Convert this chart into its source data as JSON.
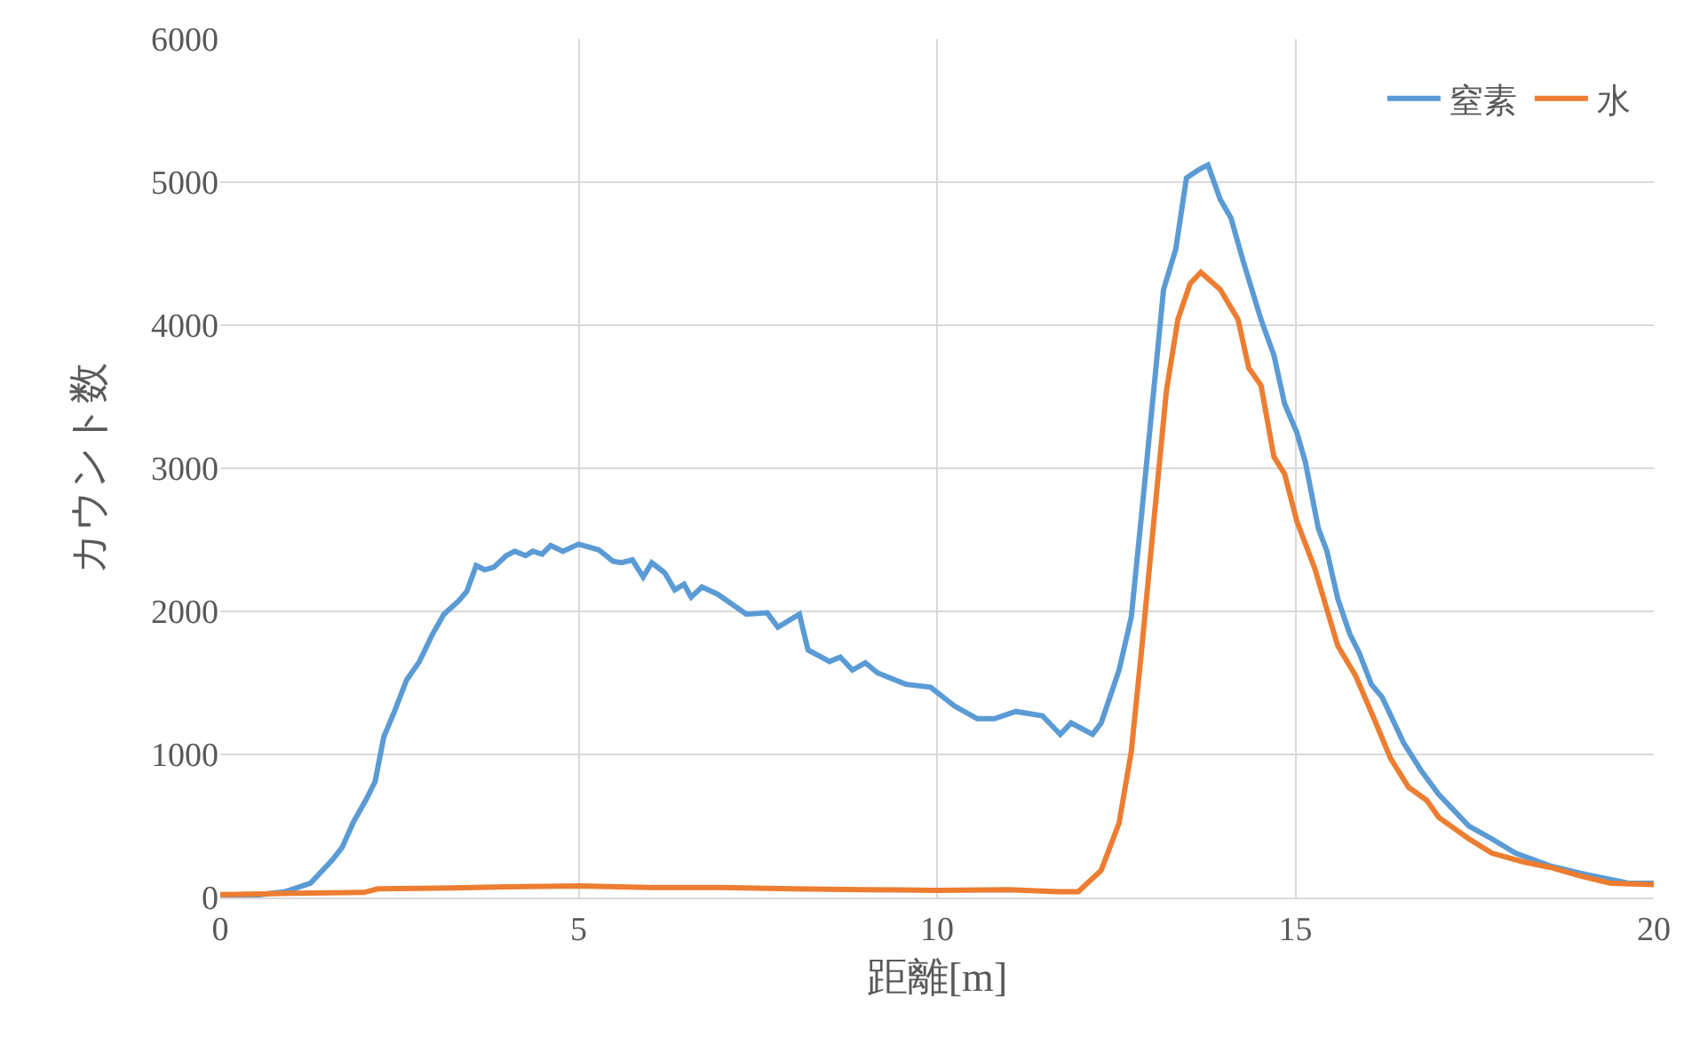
{
  "chart_data": {
    "type": "line",
    "xlabel": "距離[m]",
    "ylabel": "カウント数",
    "xlim": [
      0,
      20
    ],
    "xticks": [
      0,
      5,
      10,
      15,
      20
    ],
    "ylim": [
      0,
      6000
    ],
    "yticks": [
      0,
      1000,
      2000,
      3000,
      4000,
      5000,
      6000
    ],
    "grid": true,
    "legend": "top right",
    "marker": "none",
    "line_style": "solid",
    "series": [
      {
        "name": "窒素",
        "color": "#5b9bd5",
        "x": [
          0,
          0.4,
          0.9,
          1.26,
          1.56,
          1.7,
          1.86,
          2.03,
          2.16,
          2.28,
          2.43,
          2.6,
          2.78,
          2.95,
          3.12,
          3.32,
          3.44,
          3.57,
          3.69,
          3.82,
          3.99,
          4.11,
          4.26,
          4.36,
          4.49,
          4.61,
          4.78,
          5.0,
          5.28,
          5.48,
          5.6,
          5.75,
          5.9,
          6.02,
          6.2,
          6.34,
          6.47,
          6.57,
          6.72,
          6.94,
          7.34,
          7.63,
          7.78,
          8.08,
          8.2,
          8.5,
          8.65,
          8.82,
          9.0,
          9.17,
          9.57,
          9.91,
          10.24,
          10.56,
          10.8,
          11.1,
          11.47,
          11.72,
          11.87,
          12.17,
          12.29,
          12.54,
          12.71,
          12.86,
          13.04,
          13.16,
          13.33,
          13.48,
          13.66,
          13.78,
          13.95,
          14.1,
          14.27,
          14.52,
          14.7,
          14.85,
          15.02,
          15.14,
          15.32,
          15.44,
          15.59,
          15.76,
          15.89,
          16.06,
          16.21,
          16.51,
          16.75,
          17.0,
          17.42,
          17.74,
          18.07,
          18.56,
          19.06,
          19.65,
          20
        ],
        "values": [
          0,
          10,
          40,
          100,
          260,
          350,
          530,
          680,
          810,
          1120,
          1300,
          1520,
          1650,
          1830,
          1980,
          2070,
          2140,
          2320,
          2290,
          2310,
          2390,
          2420,
          2390,
          2420,
          2400,
          2460,
          2420,
          2470,
          2430,
          2350,
          2340,
          2360,
          2240,
          2340,
          2270,
          2150,
          2190,
          2100,
          2170,
          2120,
          1980,
          1990,
          1890,
          1980,
          1730,
          1650,
          1680,
          1590,
          1640,
          1570,
          1490,
          1470,
          1340,
          1250,
          1250,
          1300,
          1270,
          1140,
          1220,
          1140,
          1220,
          1590,
          1960,
          2710,
          3630,
          4250,
          4530,
          5030,
          5090,
          5120,
          4880,
          4750,
          4450,
          4040,
          3790,
          3450,
          3250,
          3040,
          2580,
          2420,
          2090,
          1840,
          1710,
          1490,
          1400,
          1080,
          890,
          720,
          500,
          410,
          310,
          220,
          160,
          100,
          100
        ]
      },
      {
        "name": "水",
        "color": "#ed7d31",
        "x": [
          0,
          1,
          2,
          2.2,
          3,
          4,
          5,
          6,
          7,
          8,
          9,
          10,
          11,
          11.7,
          11.97,
          12.29,
          12.54,
          12.71,
          12.86,
          13.04,
          13.2,
          13.36,
          13.53,
          13.68,
          13.95,
          14.2,
          14.35,
          14.52,
          14.7,
          14.85,
          15.02,
          15.27,
          15.59,
          15.84,
          16.08,
          16.33,
          16.58,
          16.83,
          17.0,
          17.42,
          17.74,
          18.17,
          18.56,
          18.98,
          19.4,
          20
        ],
        "values": [
          20,
          30,
          35,
          60,
          65,
          75,
          80,
          70,
          70,
          60,
          55,
          50,
          55,
          40,
          40,
          190,
          520,
          1020,
          1760,
          2710,
          3540,
          4040,
          4290,
          4370,
          4250,
          4040,
          3700,
          3580,
          3080,
          2960,
          2630,
          2300,
          1760,
          1550,
          1270,
          970,
          770,
          680,
          560,
          410,
          310,
          250,
          210,
          150,
          100,
          90
        ]
      }
    ]
  }
}
